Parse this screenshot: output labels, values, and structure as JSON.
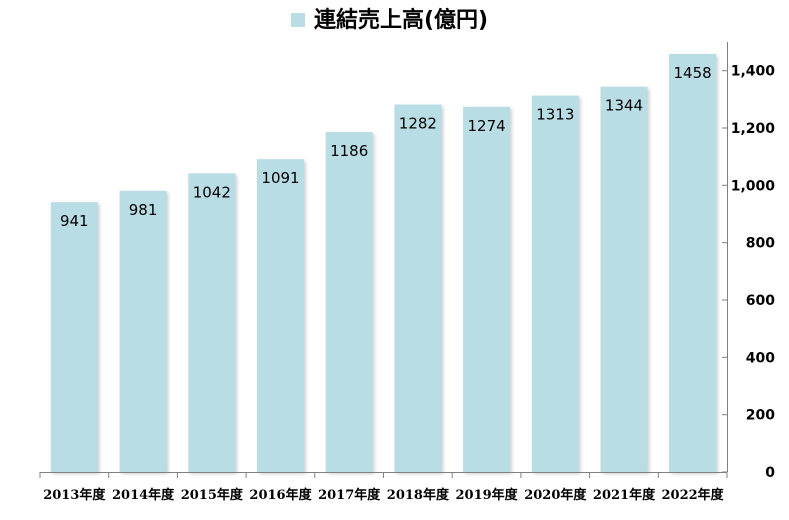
{
  "chart_data": {
    "type": "bar",
    "title": "",
    "legend": {
      "position": "top-center",
      "entries": [
        "連結売上高(億円)"
      ]
    },
    "series": [
      {
        "name": "連結売上高(億円)",
        "values": [
          941,
          981,
          1042,
          1091,
          1186,
          1282,
          1274,
          1313,
          1344,
          1458
        ],
        "color": "#b9dde5"
      }
    ],
    "categories": [
      "2013年度",
      "2014年度",
      "2015年度",
      "2016年度",
      "2017年度",
      "2018年度",
      "2019年度",
      "2020年度",
      "2021年度",
      "2022年度"
    ],
    "data_labels": [
      "941",
      "981",
      "1042",
      "1091",
      "1186",
      "1282",
      "1274",
      "1313",
      "1344",
      "1458"
    ],
    "xlabel": "",
    "ylabel": "",
    "ylim": [
      0,
      1500
    ],
    "y_ticks": [
      0,
      200,
      400,
      600,
      800,
      1000,
      1200,
      1400
    ],
    "y_tick_labels": [
      "0",
      "200",
      "400",
      "600",
      "800",
      "1,000",
      "1,200",
      "1,400"
    ],
    "y_axis_side": "right",
    "grid": false
  }
}
